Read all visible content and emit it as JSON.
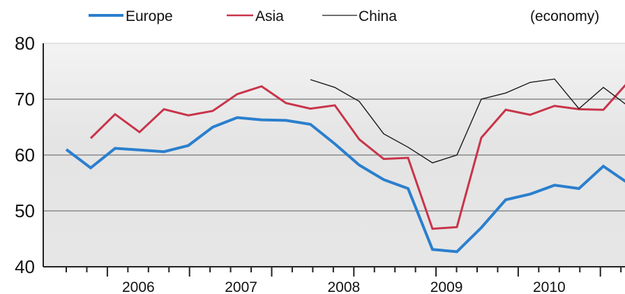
{
  "chart_data": {
    "type": "line",
    "title": "",
    "xlabel": "",
    "ylabel": "",
    "unit_note": "(economy)",
    "ylim": [
      40,
      80
    ],
    "yticks": [
      40,
      50,
      60,
      70,
      80
    ],
    "xlim": [
      0,
      27
    ],
    "year_labels": [
      {
        "label": "2006",
        "x": 4
      },
      {
        "label": "2007",
        "x": 9
      },
      {
        "label": "2008",
        "x": 14
      },
      {
        "label": "2009",
        "x": 19
      },
      {
        "label": "2010",
        "x": 24
      }
    ],
    "grid": true,
    "legend_position": "top",
    "series": [
      {
        "name": "Europe",
        "color": "#2a7fce",
        "points": [
          [
            1,
            61.0
          ],
          [
            2,
            57.7
          ],
          [
            3,
            61.2
          ],
          [
            4,
            60.9
          ],
          [
            5,
            60.6
          ],
          [
            6,
            61.7
          ],
          [
            7,
            65.0
          ],
          [
            8,
            66.7
          ],
          [
            9,
            66.3
          ],
          [
            10,
            66.2
          ],
          [
            11,
            65.5
          ],
          [
            12,
            62.0
          ],
          [
            13,
            58.2
          ],
          [
            14,
            55.6
          ],
          [
            15,
            54.0
          ],
          [
            16,
            43.1
          ],
          [
            17,
            42.7
          ],
          [
            18,
            47.0
          ],
          [
            19,
            52.0
          ],
          [
            20,
            53.0
          ],
          [
            21,
            54.6
          ],
          [
            22,
            54.0
          ],
          [
            23,
            58.0
          ],
          [
            24,
            55.0
          ]
        ]
      },
      {
        "name": "Asia",
        "color": "#c8344a",
        "points": [
          [
            2,
            63.0
          ],
          [
            3,
            67.3
          ],
          [
            4,
            64.1
          ],
          [
            5,
            68.2
          ],
          [
            6,
            67.1
          ],
          [
            7,
            67.9
          ],
          [
            8,
            70.9
          ],
          [
            9,
            72.3
          ],
          [
            10,
            69.3
          ],
          [
            11,
            68.3
          ],
          [
            12,
            68.9
          ],
          [
            13,
            62.8
          ],
          [
            14,
            59.3
          ],
          [
            15,
            59.5
          ],
          [
            16,
            46.8
          ],
          [
            17,
            47.1
          ],
          [
            18,
            63.1
          ],
          [
            19,
            68.1
          ],
          [
            20,
            67.2
          ],
          [
            21,
            68.8
          ],
          [
            22,
            68.2
          ],
          [
            23,
            68.1
          ],
          [
            24,
            73.0
          ]
        ]
      },
      {
        "name": "China",
        "color": "#1a1a1a",
        "points": [
          [
            11,
            73.5
          ],
          [
            12,
            72.1
          ],
          [
            13,
            69.6
          ],
          [
            14,
            63.8
          ],
          [
            15,
            61.4
          ],
          [
            16,
            58.6
          ],
          [
            17,
            60.0
          ],
          [
            18,
            70.0
          ],
          [
            19,
            71.1
          ],
          [
            20,
            73.0
          ],
          [
            21,
            73.6
          ],
          [
            22,
            68.3
          ],
          [
            23,
            72.1
          ],
          [
            24,
            68.8
          ]
        ]
      }
    ]
  }
}
